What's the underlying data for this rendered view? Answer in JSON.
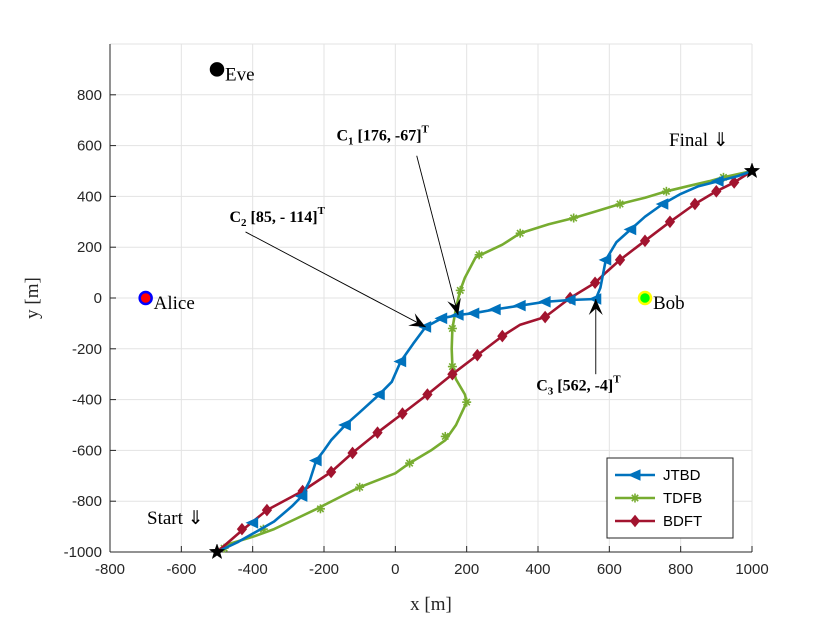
{
  "chart_data": {
    "type": "line",
    "xlabel": "x [m]",
    "ylabel": "y [m]",
    "xlim": [
      -800,
      1000
    ],
    "ylim": [
      -1000,
      1000
    ],
    "xticks": [
      -800,
      -600,
      -400,
      -200,
      0,
      200,
      400,
      600,
      800,
      1000
    ],
    "yticks": [
      -1000,
      -800,
      -600,
      -400,
      -200,
      0,
      200,
      400,
      600,
      800
    ],
    "xtick_labels": [
      "-800",
      "-600",
      "-400",
      "-200",
      "0",
      "200",
      "400",
      "600",
      "800",
      "1000"
    ],
    "ytick_labels": [
      "-1000",
      "-800",
      "-600",
      "-400",
      "-200",
      "0",
      "200",
      "400",
      "600",
      "800"
    ],
    "grid": true,
    "legend_position": "bottom-right",
    "series": [
      {
        "name": "JTBD",
        "color": "#0072BD",
        "marker": "triangle-left",
        "points": [
          [
            -500,
            -1000
          ],
          [
            -440,
            -960
          ],
          [
            -390,
            -920
          ],
          [
            -340,
            -880
          ],
          [
            -290,
            -820
          ],
          [
            -262,
            -780
          ],
          [
            -240,
            -720
          ],
          [
            -222,
            -640
          ],
          [
            -200,
            -600
          ],
          [
            -180,
            -560
          ],
          [
            -140,
            -500
          ],
          [
            -100,
            -450
          ],
          [
            -45,
            -380
          ],
          [
            -10,
            -330
          ],
          [
            15,
            -250
          ],
          [
            50,
            -180
          ],
          [
            85,
            -114
          ],
          [
            130,
            -80
          ],
          [
            176,
            -67
          ],
          [
            220,
            -60
          ],
          [
            280,
            -45
          ],
          [
            350,
            -30
          ],
          [
            420,
            -15
          ],
          [
            490,
            -8
          ],
          [
            562,
            -4
          ],
          [
            575,
            40
          ],
          [
            590,
            150
          ],
          [
            620,
            220
          ],
          [
            660,
            270
          ],
          [
            700,
            320
          ],
          [
            750,
            370
          ],
          [
            800,
            410
          ],
          [
            850,
            440
          ],
          [
            905,
            460
          ],
          [
            960,
            480
          ],
          [
            1000,
            500
          ]
        ],
        "markers": [
          [
            -400,
            -885
          ],
          [
            -262,
            -780
          ],
          [
            -222,
            -640
          ],
          [
            -140,
            -500
          ],
          [
            -45,
            -380
          ],
          [
            15,
            -250
          ],
          [
            85,
            -114
          ],
          [
            130,
            -80
          ],
          [
            176,
            -67
          ],
          [
            220,
            -60
          ],
          [
            280,
            -45
          ],
          [
            350,
            -30
          ],
          [
            420,
            -15
          ],
          [
            490,
            -8
          ],
          [
            562,
            -4
          ],
          [
            590,
            150
          ],
          [
            660,
            270
          ],
          [
            750,
            370
          ],
          [
            905,
            460
          ]
        ]
      },
      {
        "name": "TDFB",
        "color": "#77AC30",
        "marker": "star",
        "points": [
          [
            -500,
            -1000
          ],
          [
            -470,
            -970
          ],
          [
            -400,
            -940
          ],
          [
            -340,
            -910
          ],
          [
            -280,
            -870
          ],
          [
            -220,
            -830
          ],
          [
            -150,
            -780
          ],
          [
            -100,
            -745
          ],
          [
            0,
            -690
          ],
          [
            40,
            -650
          ],
          [
            100,
            -600
          ],
          [
            140,
            -560
          ],
          [
            170,
            -500
          ],
          [
            190,
            -440
          ],
          [
            200,
            -410
          ],
          [
            195,
            -380
          ],
          [
            170,
            -320
          ],
          [
            160,
            -270
          ],
          [
            158,
            -200
          ],
          [
            160,
            -120
          ],
          [
            170,
            -40
          ],
          [
            182,
            30
          ],
          [
            195,
            80
          ],
          [
            225,
            160
          ],
          [
            240,
            170
          ],
          [
            300,
            210
          ],
          [
            350,
            255
          ],
          [
            430,
            290
          ],
          [
            500,
            315
          ],
          [
            560,
            340
          ],
          [
            630,
            370
          ],
          [
            700,
            395
          ],
          [
            760,
            420
          ],
          [
            820,
            440
          ],
          [
            880,
            460
          ],
          [
            920,
            475
          ],
          [
            1000,
            500
          ]
        ],
        "markers": [
          [
            -480,
            -985
          ],
          [
            -370,
            -910
          ],
          [
            -210,
            -830
          ],
          [
            -100,
            -745
          ],
          [
            40,
            -650
          ],
          [
            140,
            -545
          ],
          [
            200,
            -410
          ],
          [
            160,
            -270
          ],
          [
            160,
            -120
          ],
          [
            182,
            30
          ],
          [
            235,
            170
          ],
          [
            350,
            255
          ],
          [
            500,
            315
          ],
          [
            630,
            370
          ],
          [
            760,
            420
          ],
          [
            920,
            475
          ]
        ]
      },
      {
        "name": "BDFT",
        "color": "#A2142F",
        "marker": "diamond",
        "points": [
          [
            -500,
            -1000
          ],
          [
            -430,
            -915
          ],
          [
            -360,
            -835
          ],
          [
            -260,
            -760
          ],
          [
            -180,
            -685
          ],
          [
            -120,
            -610
          ],
          [
            -50,
            -530
          ],
          [
            20,
            -455
          ],
          [
            90,
            -380
          ],
          [
            160,
            -300
          ],
          [
            230,
            -225
          ],
          [
            300,
            -150
          ],
          [
            350,
            -105
          ],
          [
            420,
            -75
          ],
          [
            490,
            0
          ],
          [
            560,
            60
          ],
          [
            590,
            100
          ],
          [
            630,
            150
          ],
          [
            700,
            225
          ],
          [
            770,
            300
          ],
          [
            840,
            370
          ],
          [
            900,
            420
          ],
          [
            950,
            455
          ],
          [
            1000,
            500
          ]
        ],
        "markers": [
          [
            -430,
            -910
          ],
          [
            -360,
            -835
          ],
          [
            -260,
            -760
          ],
          [
            -180,
            -685
          ],
          [
            -120,
            -610
          ],
          [
            -50,
            -530
          ],
          [
            20,
            -455
          ],
          [
            90,
            -380
          ],
          [
            160,
            -300
          ],
          [
            230,
            -225
          ],
          [
            300,
            -150
          ],
          [
            420,
            -75
          ],
          [
            490,
            0
          ],
          [
            560,
            60
          ],
          [
            630,
            150
          ],
          [
            700,
            225
          ],
          [
            770,
            300
          ],
          [
            840,
            370
          ],
          [
            900,
            420
          ],
          [
            950,
            455
          ]
        ]
      }
    ],
    "points_of_interest": [
      {
        "name": "Eve",
        "x": -500,
        "y": 900,
        "fill": "#000000",
        "ring": "#000000"
      },
      {
        "name": "Alice",
        "x": -700,
        "y": 0,
        "fill": "#ff0000",
        "ring": "#0000ff"
      },
      {
        "name": "Bob",
        "x": 700,
        "y": 0,
        "fill": "#00ff00",
        "ring": "#ffff00"
      }
    ],
    "endpoints": [
      {
        "label": "Start ⇓",
        "x": -500,
        "y": -1000
      },
      {
        "label": "Final ⇓",
        "x": 1000,
        "y": 500
      }
    ],
    "annotations": [
      {
        "main": "C",
        "sub": "1",
        "rest": " [176, -67]",
        "sup": "T",
        "target": [
          176,
          -67
        ],
        "text_at": [
          -165,
          620
        ],
        "tail": [
          60,
          560
        ]
      },
      {
        "main": "C",
        "sub": "2",
        "rest": " [85, - 114]",
        "sup": "T",
        "target": [
          85,
          -114
        ],
        "text_at": [
          -465,
          300
        ],
        "tail": [
          -420,
          260
        ]
      },
      {
        "main": "C",
        "sub": "3",
        "rest": " [562, -4]",
        "sup": "T",
        "target": [
          562,
          -4
        ],
        "text_at": [
          395,
          -365
        ],
        "tail": [
          562,
          -300
        ]
      }
    ]
  }
}
